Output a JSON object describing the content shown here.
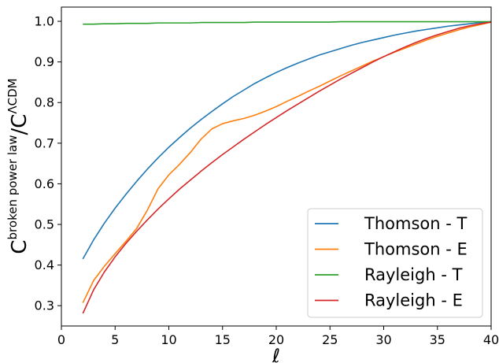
{
  "chart_data": {
    "type": "line",
    "title": "",
    "xlabel": "ℓ",
    "ylabel": {
      "main": "C",
      "sup1": "broken power law",
      "slash": "/",
      "main2": "C",
      "sup2": "ΛCDM"
    },
    "xlim": [
      0,
      40
    ],
    "ylim": [
      0.25,
      1.035
    ],
    "xticks": [
      0,
      5,
      10,
      15,
      20,
      25,
      30,
      35,
      40
    ],
    "yticks": [
      0.3,
      0.4,
      0.5,
      0.6,
      0.7,
      0.8,
      0.9,
      1.0
    ],
    "ytick_labels": [
      "0.3",
      "0.4",
      "0.5",
      "0.6",
      "0.7",
      "0.8",
      "0.9",
      "1.0"
    ],
    "grid": false,
    "legend_position": "lower-right",
    "x": [
      2,
      3,
      4,
      5,
      6,
      7,
      8,
      9,
      10,
      11,
      12,
      13,
      14,
      15,
      16,
      17,
      18,
      19,
      20,
      21,
      22,
      23,
      24,
      25,
      26,
      27,
      28,
      29,
      30,
      31,
      32,
      33,
      34,
      35,
      36,
      37,
      38,
      39,
      40
    ],
    "series": [
      {
        "name": "Thomson - T",
        "color": "#1f77b4",
        "values": [
          0.415,
          0.462,
          0.503,
          0.54,
          0.574,
          0.606,
          0.636,
          0.664,
          0.69,
          0.714,
          0.737,
          0.758,
          0.778,
          0.797,
          0.815,
          0.831,
          0.847,
          0.861,
          0.874,
          0.886,
          0.897,
          0.907,
          0.917,
          0.925,
          0.933,
          0.941,
          0.948,
          0.954,
          0.96,
          0.966,
          0.971,
          0.976,
          0.98,
          0.984,
          0.988,
          0.991,
          0.994,
          0.997,
          0.999
        ]
      },
      {
        "name": "Thomson - E",
        "color": "#ff7f0e",
        "values": [
          0.307,
          0.362,
          0.397,
          0.428,
          0.458,
          0.49,
          0.535,
          0.588,
          0.622,
          0.648,
          0.677,
          0.71,
          0.735,
          0.748,
          0.755,
          0.761,
          0.769,
          0.779,
          0.79,
          0.803,
          0.815,
          0.828,
          0.84,
          0.853,
          0.866,
          0.878,
          0.89,
          0.902,
          0.913,
          0.924,
          0.934,
          0.944,
          0.954,
          0.963,
          0.971,
          0.979,
          0.986,
          0.992,
          0.998
        ]
      },
      {
        "name": "Rayleigh - T",
        "color": "#2ca02c",
        "values": [
          0.993,
          0.993,
          0.994,
          0.994,
          0.995,
          0.995,
          0.995,
          0.996,
          0.996,
          0.996,
          0.996,
          0.997,
          0.997,
          0.997,
          0.997,
          0.997,
          0.998,
          0.998,
          0.998,
          0.998,
          0.998,
          0.998,
          0.998,
          0.998,
          0.999,
          0.999,
          0.999,
          0.999,
          0.999,
          0.999,
          0.999,
          0.999,
          0.999,
          0.999,
          0.999,
          0.999,
          0.999,
          0.999,
          0.999
        ]
      },
      {
        "name": "Rayleigh - E",
        "color": "#d62728",
        "values": [
          0.281,
          0.339,
          0.383,
          0.42,
          0.453,
          0.483,
          0.511,
          0.538,
          0.563,
          0.587,
          0.609,
          0.631,
          0.652,
          0.672,
          0.691,
          0.71,
          0.728,
          0.746,
          0.763,
          0.78,
          0.796,
          0.812,
          0.828,
          0.843,
          0.858,
          0.872,
          0.886,
          0.9,
          0.913,
          0.925,
          0.937,
          0.948,
          0.958,
          0.967,
          0.975,
          0.983,
          0.989,
          0.994,
          0.998
        ]
      }
    ]
  }
}
